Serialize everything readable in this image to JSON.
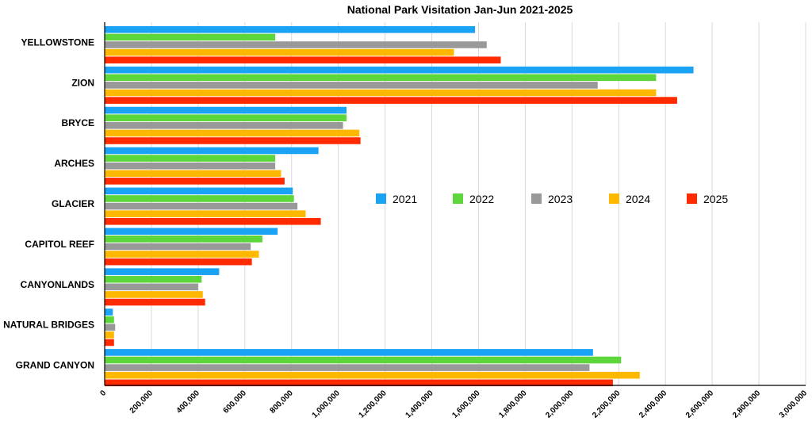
{
  "chart_data": {
    "type": "bar",
    "orientation": "horizontal",
    "title": "National Park Visitation Jan-Jun 2021-2025",
    "xlabel": "",
    "ylabel": "",
    "xlim": [
      0,
      3000000
    ],
    "tick_values": [
      0,
      200000,
      400000,
      600000,
      800000,
      1000000,
      1200000,
      1400000,
      1600000,
      1800000,
      2000000,
      2200000,
      2400000,
      2600000,
      2800000,
      3000000
    ],
    "tick_labels": [
      "0",
      "200,000",
      "400,000",
      "600,000",
      "800,000",
      "1,000,000",
      "1,200,000",
      "1,400,000",
      "1,600,000",
      "1,800,000",
      "2,000,000",
      "2,200,000",
      "2,400,000",
      "2,600,000",
      "2,800,000",
      "3,000,000"
    ],
    "grid": true,
    "legend_position": "right-middle",
    "categories": [
      "YELLOWSTONE",
      "ZION",
      "BRYCE",
      "ARCHES",
      "GLACIER",
      "CAPITOL REEF",
      "CANYONLANDS",
      "NATURAL BRIDGES",
      "GRAND CANYON"
    ],
    "series": [
      {
        "name": "2021",
        "color": "#1aa3f5",
        "values": [
          1585000,
          2520000,
          1035000,
          915000,
          805000,
          740000,
          490000,
          35000,
          2090000
        ]
      },
      {
        "name": "2022",
        "color": "#5dd63b",
        "values": [
          730000,
          2360000,
          1035000,
          730000,
          810000,
          675000,
          415000,
          40000,
          2210000
        ]
      },
      {
        "name": "2023",
        "color": "#999999",
        "values": [
          1635000,
          2110000,
          1020000,
          730000,
          825000,
          625000,
          400000,
          45000,
          2075000
        ]
      },
      {
        "name": "2024",
        "color": "#ffb800",
        "values": [
          1495000,
          2360000,
          1090000,
          755000,
          860000,
          660000,
          420000,
          40000,
          2290000
        ]
      },
      {
        "name": "2025",
        "color": "#ff2a00",
        "values": [
          1695000,
          2450000,
          1095000,
          770000,
          925000,
          630000,
          430000,
          40000,
          2175000
        ]
      }
    ]
  }
}
